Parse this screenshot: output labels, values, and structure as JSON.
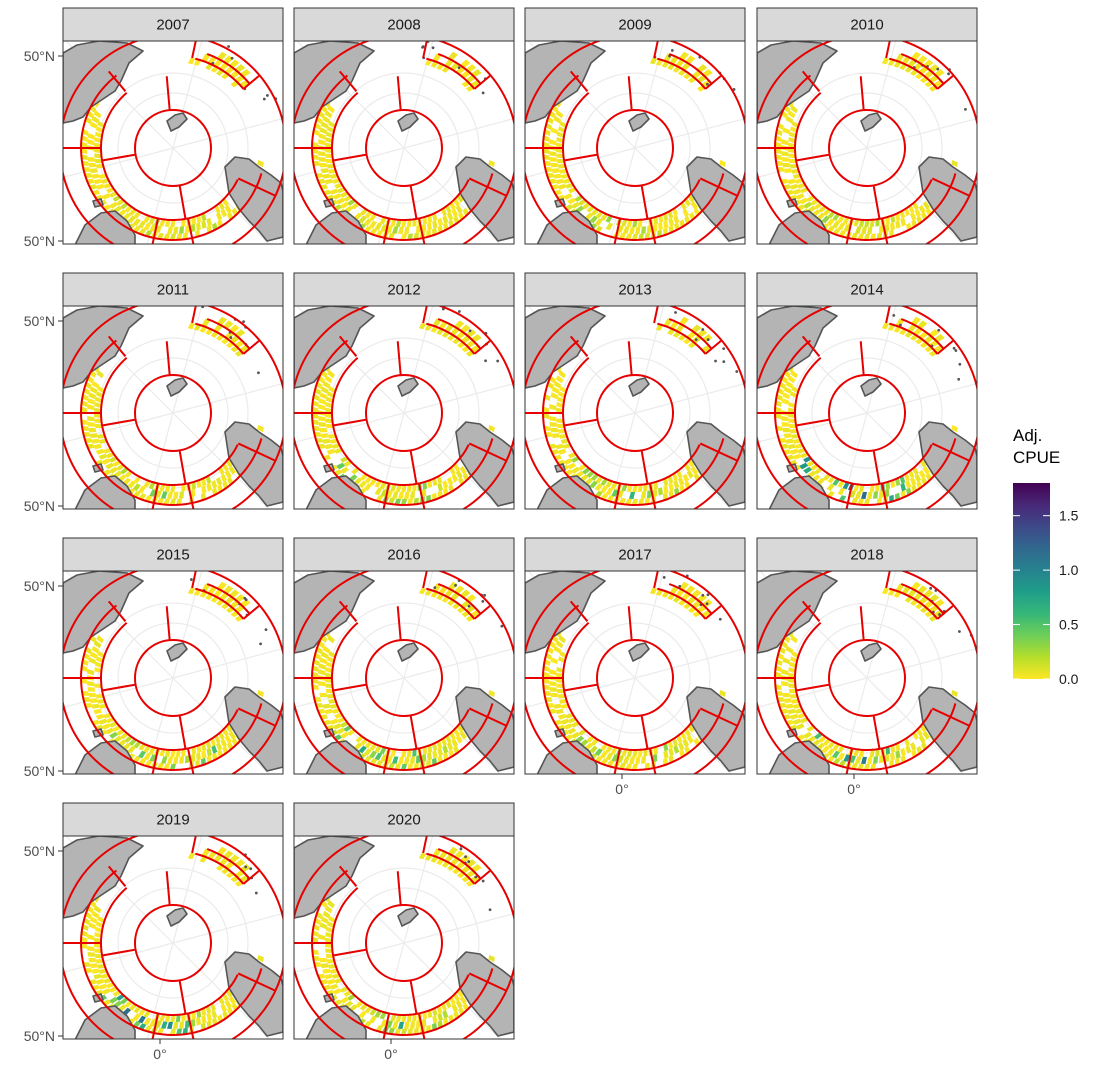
{
  "chart_data": {
    "type": "heatmap",
    "projection": "south-polar-stereographic",
    "facet_labels": [
      "2007",
      "2008",
      "2009",
      "2010",
      "2011",
      "2012",
      "2013",
      "2014",
      "2015",
      "2016",
      "2017",
      "2018",
      "2019",
      "2020"
    ],
    "y_tick_labels": [
      "50°N",
      "50°N"
    ],
    "x_tick_labels": [
      "0°"
    ],
    "legend": {
      "title_line1": "Adj.",
      "title_line2": "CPUE",
      "placement": "right",
      "colormap": "viridis-reversed",
      "range": [
        0,
        1.8
      ],
      "ticks": [
        0.0,
        0.5,
        1.0,
        1.5
      ],
      "tick_labels": [
        "0.0",
        "0.5",
        "1.0",
        "1.5"
      ]
    },
    "colors": {
      "land": "#b4b4b4",
      "coast": "#555555",
      "boundaries": "#e60000",
      "grid": "#ebebeb",
      "strip_fill": "#d9d9d9",
      "panel_border": "#333333"
    },
    "panels": [
      {
        "year": "2007",
        "max_cpue": 0.45,
        "seed": 7
      },
      {
        "year": "2008",
        "max_cpue": 0.45,
        "seed": 8
      },
      {
        "year": "2009",
        "max_cpue": 0.5,
        "seed": 9
      },
      {
        "year": "2010",
        "max_cpue": 0.4,
        "seed": 10
      },
      {
        "year": "2011",
        "max_cpue": 0.45,
        "seed": 11
      },
      {
        "year": "2012",
        "max_cpue": 0.75,
        "seed": 12
      },
      {
        "year": "2013",
        "max_cpue": 0.65,
        "seed": 13
      },
      {
        "year": "2014",
        "max_cpue": 1.8,
        "seed": 14
      },
      {
        "year": "2015",
        "max_cpue": 0.9,
        "seed": 15
      },
      {
        "year": "2016",
        "max_cpue": 0.9,
        "seed": 16
      },
      {
        "year": "2017",
        "max_cpue": 0.6,
        "seed": 17
      },
      {
        "year": "2018",
        "max_cpue": 1.2,
        "seed": 18
      },
      {
        "year": "2019",
        "max_cpue": 1.3,
        "seed": 19
      },
      {
        "year": "2020",
        "max_cpue": 0.75,
        "seed": 20
      }
    ]
  }
}
